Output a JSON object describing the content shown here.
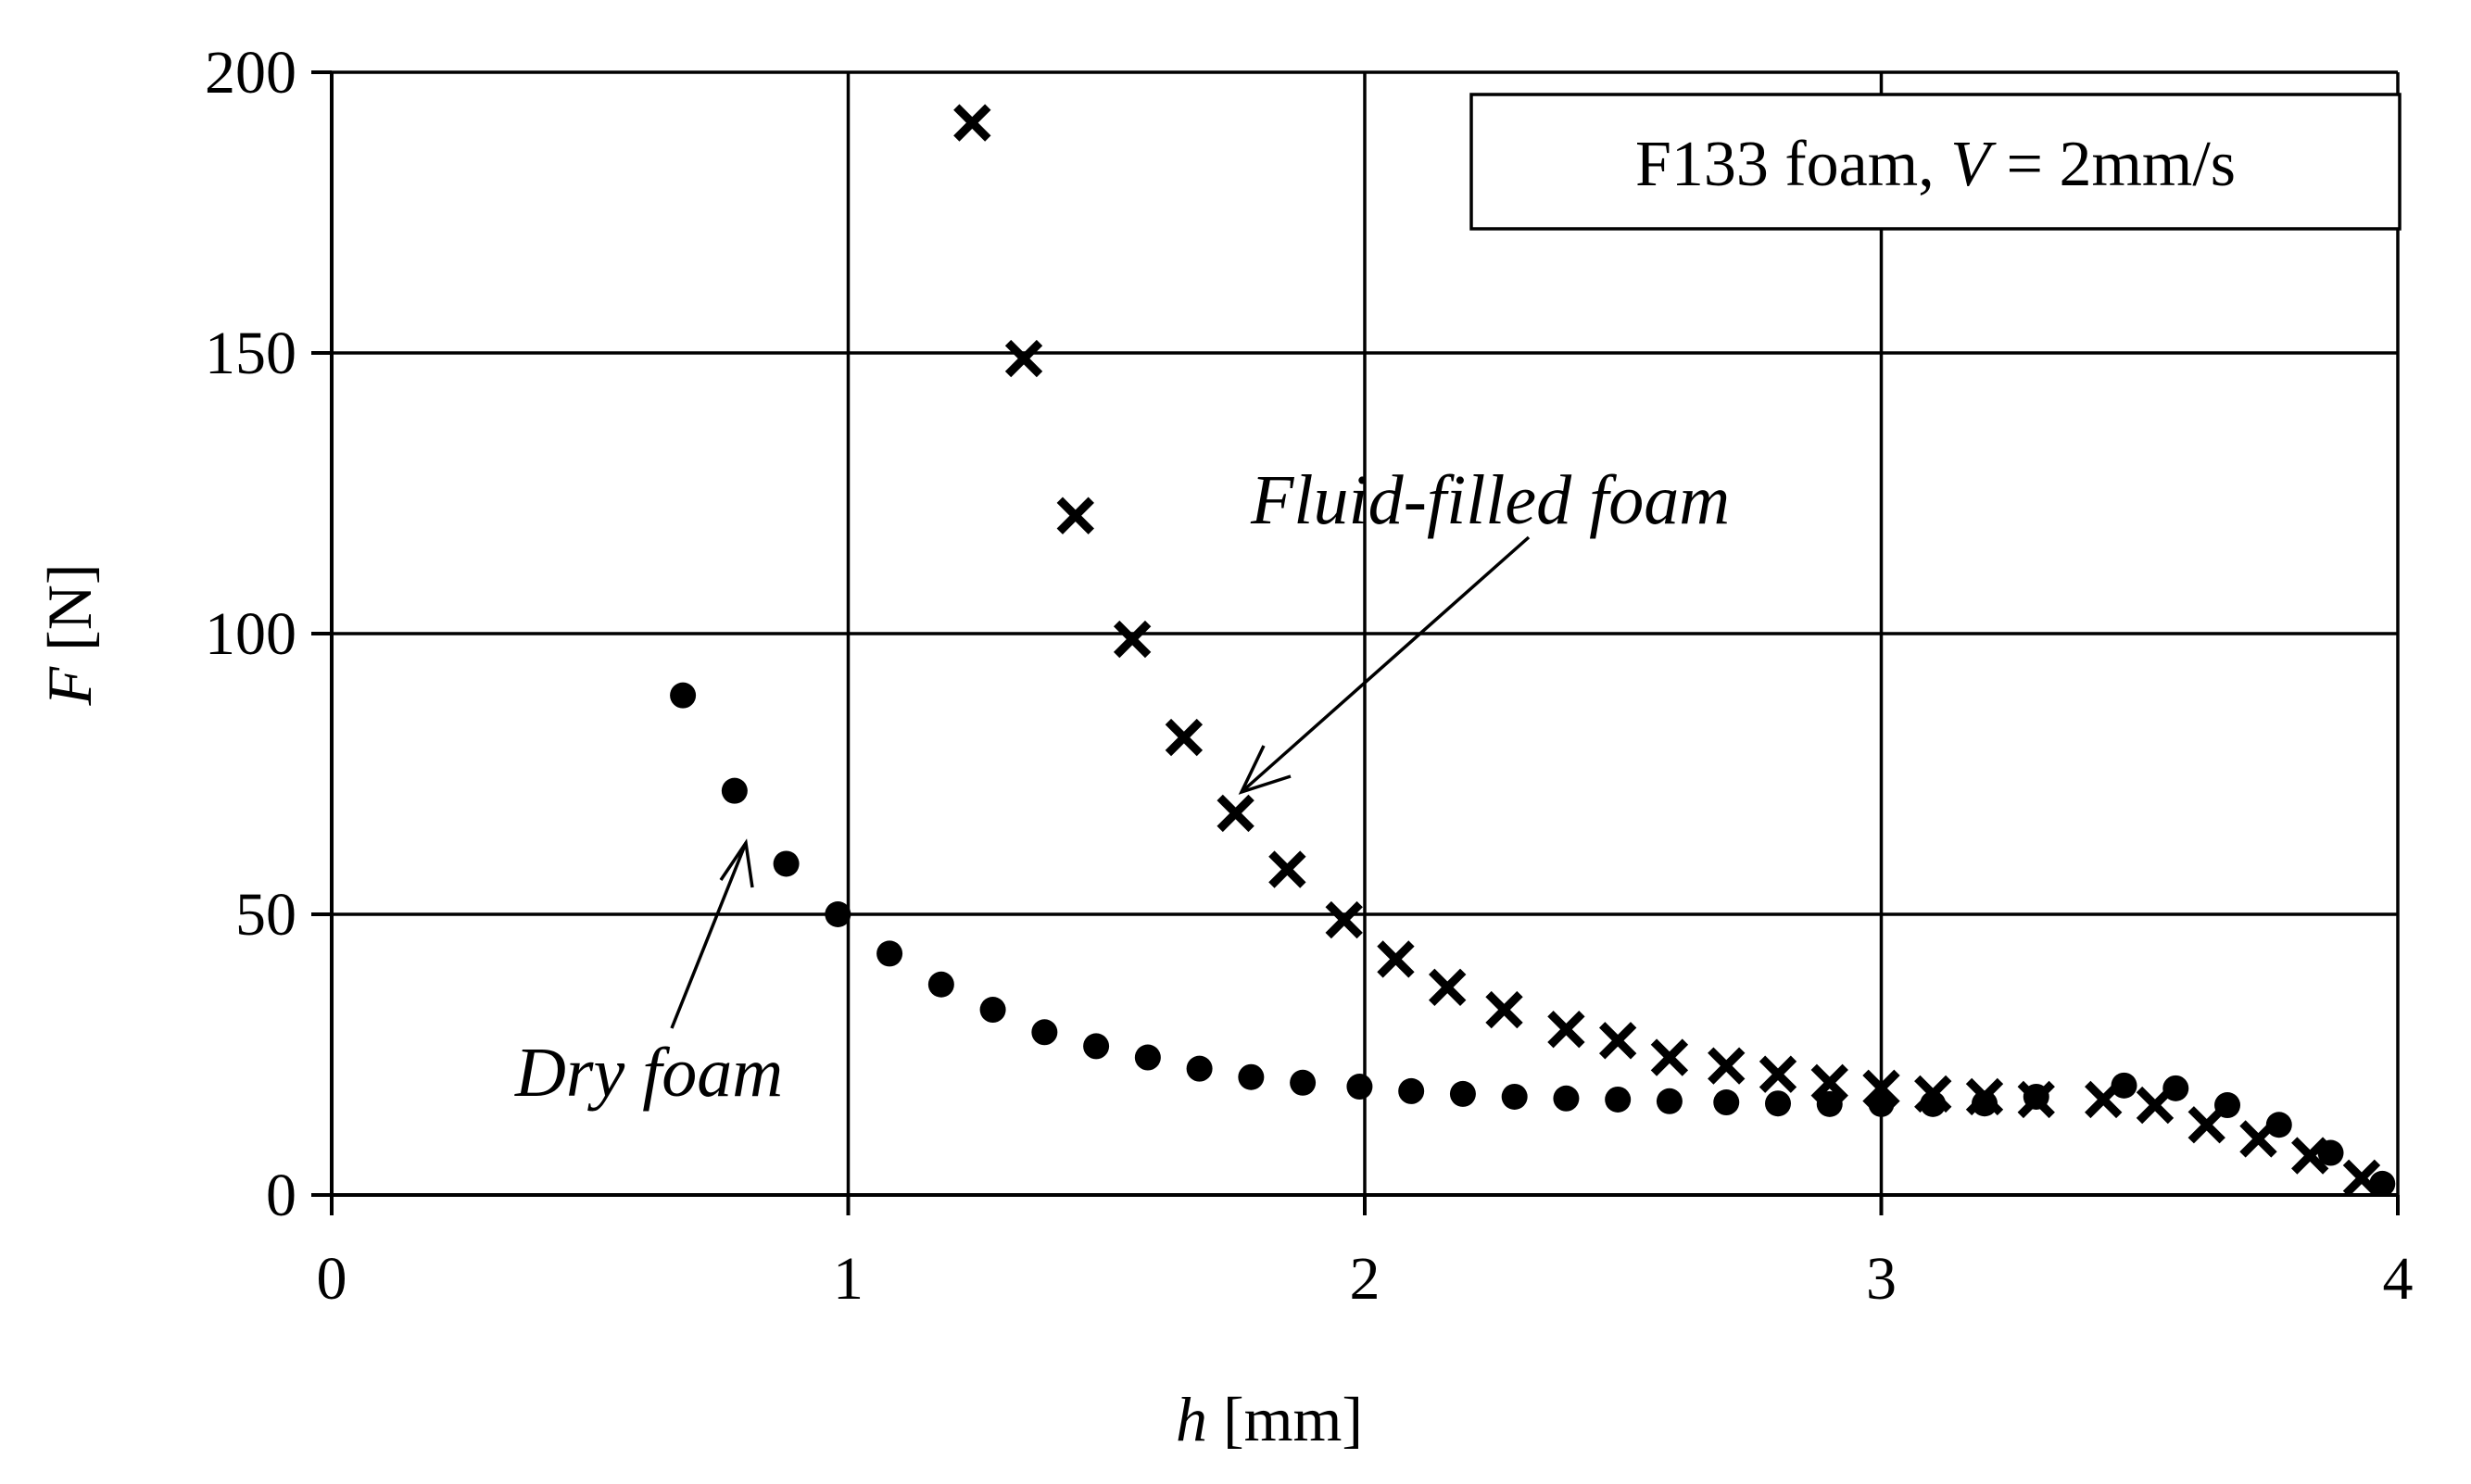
{
  "chart_data": {
    "type": "scatter",
    "xlabel": "h [mm]",
    "ylabel": "F [N]",
    "xlabel_var": "h",
    "xlabel_unit": "[mm]",
    "ylabel_var": "F",
    "ylabel_unit": "[N]",
    "xlim": [
      0,
      4
    ],
    "ylim": [
      0,
      200
    ],
    "xticks": [
      0,
      1,
      2,
      3,
      4
    ],
    "yticks": [
      0,
      50,
      100,
      150,
      200
    ],
    "grid": true,
    "legend_box": {
      "text_prefix": "F133 foam, ",
      "text_var": "V",
      "text_suffix": " = 2mm/s",
      "placement": "top-right"
    },
    "annotations": [
      {
        "text": "Fluid-filled foam",
        "series": "fluid"
      },
      {
        "text": "Dry foam",
        "series": "dry"
      }
    ],
    "series": [
      {
        "key": "dry",
        "marker": "circle",
        "x": [
          0.68,
          0.78,
          0.88,
          0.98,
          1.08,
          1.18,
          1.28,
          1.38,
          1.48,
          1.58,
          1.68,
          1.78,
          1.88,
          1.99,
          2.09,
          2.19,
          2.29,
          2.39,
          2.49,
          2.59,
          2.7,
          2.8,
          2.9,
          3.0,
          3.1,
          3.2,
          3.3,
          3.47,
          3.57,
          3.67,
          3.77,
          3.87,
          3.97
        ],
        "y": [
          89,
          72,
          59,
          50,
          43,
          37.5,
          33,
          29,
          26.5,
          24.5,
          22.5,
          21,
          20,
          19.3,
          18.5,
          18,
          17.5,
          17.2,
          17,
          16.7,
          16.5,
          16.3,
          16.2,
          16.2,
          16.2,
          16.3,
          17.5,
          19.5,
          19,
          16,
          12.5,
          7.5,
          2
        ]
      },
      {
        "key": "fluid",
        "marker": "x",
        "x": [
          1.24,
          1.34,
          1.44,
          1.55,
          1.65,
          1.75,
          1.85,
          1.96,
          2.06,
          2.16,
          2.27,
          2.39,
          2.49,
          2.59,
          2.7,
          2.8,
          2.9,
          3.0,
          3.1,
          3.2,
          3.3,
          3.43,
          3.53,
          3.63,
          3.73,
          3.83,
          3.93
        ],
        "y": [
          191,
          149,
          121,
          99,
          81.5,
          68,
          58,
          49,
          42,
          37,
          33,
          29.5,
          27.5,
          24.5,
          23,
          21.5,
          20,
          19,
          18,
          17.5,
          17,
          17,
          16,
          12.5,
          10,
          7,
          3
        ]
      }
    ]
  }
}
